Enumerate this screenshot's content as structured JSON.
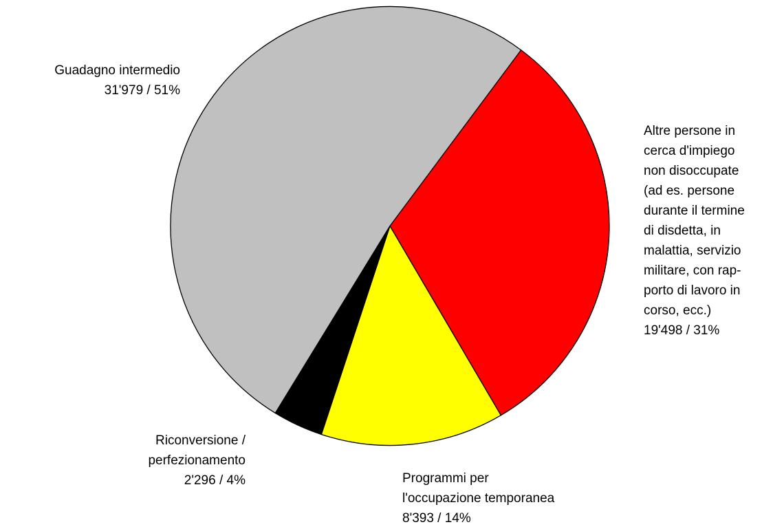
{
  "chart_data": {
    "type": "pie",
    "categories": [
      [
        "Altre persone in",
        "cerca d'impiego",
        "non disoccupate",
        "(ad es. persone",
        "durante il termine",
        "di disdetta, in",
        "malattia, servizio",
        "militare, con rap-",
        "porto di lavoro in",
        "corso, ecc.)"
      ],
      [
        "Programmi per",
        "l'occupazione temporanea"
      ],
      [
        "Riconversione /",
        "perfezionamento"
      ],
      [
        "Guadagno intermedio"
      ]
    ],
    "values": [
      19498,
      8393,
      2296,
      31979
    ],
    "value_labels": [
      "19'498 / 31%",
      "8'393 / 14%",
      "2'296 / 4%",
      "31'979 / 51%"
    ],
    "colors": [
      "#ff0000",
      "#ffff00",
      "#000000",
      "#c0c0c0"
    ]
  }
}
